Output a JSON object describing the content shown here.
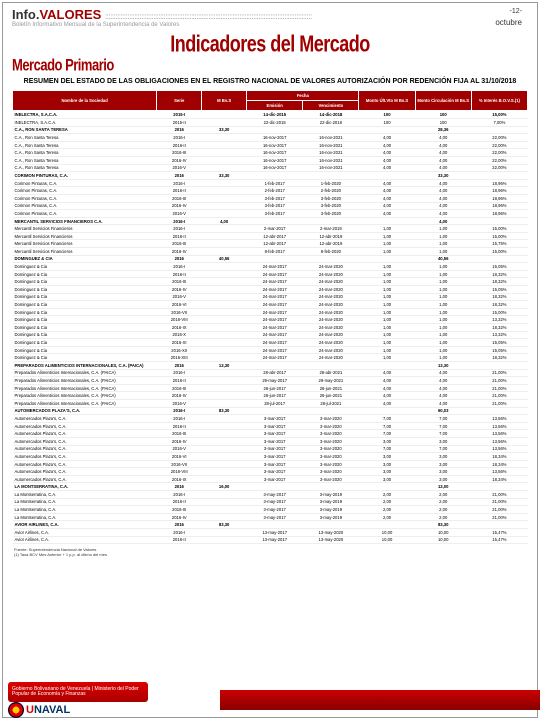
{
  "header": {
    "brand_info": "Info.",
    "brand_valores": "VALORES",
    "subtitle": "Boletín Informativo Mensual de la Superintendencia de Valores",
    "page_num": "-12-",
    "month": "octubre"
  },
  "titles": {
    "main": "Indicadores del Mercado",
    "sub": "Mercado Primario",
    "resumen": "RESUMEN DEL ESTADO DE LAS OBLIGACIONES EN EL REGISTRO NACIONAL DE VALORES AUTORIZACIÓN POR REDENCIÓN FIJA AL 31/10/2018"
  },
  "columns": {
    "nombre": "Nombre de la Sociedad",
    "serie": "Serie",
    "mbs": "M Bs.S",
    "fecha": "Fecha",
    "femi": "Emisión",
    "fvenc": "Vencimiento",
    "monto_cult": "Monto Últ.Vto M Bs.S",
    "monto_circ": "Monto Circulación M Bs.S",
    "interes": "% Interés B.O.V.S.(1)"
  },
  "rows": [
    {
      "g": 1,
      "n": "INELECTRA, S.A.C.A.",
      "s": "2015-I",
      "m": "",
      "fe": "14-dic-2015",
      "fv": "14-dic-2018",
      "c": "100",
      "ci": "100",
      "i": "15,00%"
    },
    {
      "g": 0,
      "n": "INELECTRA, S.A.C.A.",
      "s": "2015-II",
      "m": "",
      "fe": "22-dic-2015",
      "fv": "22-dic-2018",
      "c": "100",
      "ci": "100",
      "i": "7,00%"
    },
    {
      "g": 1,
      "n": "C.A., RON SANTA TERESA",
      "s": "2016",
      "m": "33,30",
      "fe": "",
      "fv": "",
      "c": "",
      "ci": "28,36",
      "i": ""
    },
    {
      "g": 0,
      "n": "C.A., Ron Santa Teresa",
      "s": "2016-I",
      "m": "",
      "fe": "16-nov-2017",
      "fv": "16-nov-2021",
      "c": "4,00",
      "ci": "4,00",
      "i": "22,00%"
    },
    {
      "g": 0,
      "n": "C.A., Ron Santa Teresa",
      "s": "2016-II",
      "m": "",
      "fe": "16-nov-2017",
      "fv": "16-nov-2021",
      "c": "4,00",
      "ci": "4,00",
      "i": "22,00%"
    },
    {
      "g": 0,
      "n": "C.A., Ron Santa Teresa",
      "s": "2016-III",
      "m": "",
      "fe": "16-nov-2017",
      "fv": "16-nov-2021",
      "c": "4,00",
      "ci": "4,00",
      "i": "22,00%"
    },
    {
      "g": 0,
      "n": "C.A., Ron Santa Teresa",
      "s": "2016-IV",
      "m": "",
      "fe": "16-nov-2017",
      "fv": "16-nov-2021",
      "c": "4,00",
      "ci": "4,00",
      "i": "22,00%"
    },
    {
      "g": 0,
      "n": "C.A., Ron Santa Teresa",
      "s": "2016-V",
      "m": "",
      "fe": "16-nov-2017",
      "fv": "16-nov-2021",
      "c": "4,00",
      "ci": "4,00",
      "i": "22,00%"
    },
    {
      "g": 1,
      "n": "CORIMON PINTURAS, C.A.",
      "s": "2016",
      "m": "33,30",
      "fe": "",
      "fv": "",
      "c": "",
      "ci": "33,30",
      "i": ""
    },
    {
      "g": 0,
      "n": "Corimon Pinturas, C.A.",
      "s": "2016-I",
      "m": "",
      "fe": "1-feb-2017",
      "fv": "1-feb-2020",
      "c": "4,00",
      "ci": "4,00",
      "i": "18,96%"
    },
    {
      "g": 0,
      "n": "Corimon Pinturas, C.A.",
      "s": "2016-II",
      "m": "",
      "fe": "2-feb-2017",
      "fv": "2-feb-2020",
      "c": "4,00",
      "ci": "4,00",
      "i": "18,96%"
    },
    {
      "g": 0,
      "n": "Corimon Pinturas, C.A.",
      "s": "2016-III",
      "m": "",
      "fe": "3-feb-2017",
      "fv": "3-feb-2020",
      "c": "4,00",
      "ci": "4,00",
      "i": "18,96%"
    },
    {
      "g": 0,
      "n": "Corimon Pinturas, C.A.",
      "s": "2016-IV",
      "m": "",
      "fe": "3-feb-2017",
      "fv": "3-feb-2020",
      "c": "4,00",
      "ci": "4,00",
      "i": "18,96%"
    },
    {
      "g": 0,
      "n": "Corimon Pinturas, C.A.",
      "s": "2016-V",
      "m": "",
      "fe": "3-feb-2017",
      "fv": "3-feb-2020",
      "c": "4,00",
      "ci": "4,00",
      "i": "18,96%"
    },
    {
      "g": 1,
      "n": "MERCANTIL SERVICIOS FINANCIEROS C.A.",
      "s": "2016-I",
      "m": "4,00",
      "fe": "",
      "fv": "",
      "c": "",
      "ci": "4,00",
      "i": ""
    },
    {
      "g": 0,
      "n": "Mercantil Servicios Financieros",
      "s": "2016-I",
      "m": "",
      "fe": "2-mar-2017",
      "fv": "2-mar-2019",
      "c": "1,00",
      "ci": "1,00",
      "i": "15,00%"
    },
    {
      "g": 0,
      "n": "Mercantil Servicios Financieros",
      "s": "2016-II",
      "m": "",
      "fe": "12-abr-2017",
      "fv": "12-abr-2019",
      "c": "1,00",
      "ci": "1,00",
      "i": "15,00%"
    },
    {
      "g": 0,
      "n": "Mercantil Servicios Financieros",
      "s": "2016-III",
      "m": "",
      "fe": "12-abr-2017",
      "fv": "12-abr-2019",
      "c": "1,00",
      "ci": "1,00",
      "i": "15,75%"
    },
    {
      "g": 0,
      "n": "Mercantil Servicios Financieros",
      "s": "2016-IV",
      "m": "",
      "fe": "8-feb-2017",
      "fv": "8-feb-2020",
      "c": "1,00",
      "ci": "1,00",
      "i": "15,00%"
    },
    {
      "g": 1,
      "n": "DOMINGUEZ & CIA",
      "s": "2016",
      "m": "40,56",
      "fe": "",
      "fv": "",
      "c": "",
      "ci": "40,56",
      "i": ""
    },
    {
      "g": 0,
      "n": "Dominguez & Cia",
      "s": "2016-I",
      "m": "",
      "fe": "24-mar-2017",
      "fv": "24-mar-2020",
      "c": "1,00",
      "ci": "1,00",
      "i": "15,05%"
    },
    {
      "g": 0,
      "n": "Dominguez & Cia",
      "s": "2016-II",
      "m": "",
      "fe": "24-mar-2017",
      "fv": "24-mar-2020",
      "c": "1,00",
      "ci": "1,00",
      "i": "18,32%"
    },
    {
      "g": 0,
      "n": "Dominguez & Cia",
      "s": "2016-III",
      "m": "",
      "fe": "24-mar-2017",
      "fv": "24-mar-2020",
      "c": "1,00",
      "ci": "1,00",
      "i": "18,32%"
    },
    {
      "g": 0,
      "n": "Dominguez & Cia",
      "s": "2016-IV",
      "m": "",
      "fe": "24-mar-2017",
      "fv": "24-mar-2020",
      "c": "1,00",
      "ci": "1,00",
      "i": "15,05%"
    },
    {
      "g": 0,
      "n": "Dominguez & Cia",
      "s": "2016-V",
      "m": "",
      "fe": "24-mar-2017",
      "fv": "24-mar-2020",
      "c": "1,00",
      "ci": "1,00",
      "i": "18,32%"
    },
    {
      "g": 0,
      "n": "Dominguez & Cia",
      "s": "2016-VI",
      "m": "",
      "fe": "24-mar-2017",
      "fv": "24-mar-2020",
      "c": "1,00",
      "ci": "1,00",
      "i": "18,32%"
    },
    {
      "g": 0,
      "n": "Dominguez & Cia",
      "s": "2016-VII",
      "m": "",
      "fe": "24-mar-2017",
      "fv": "24-mar-2020",
      "c": "1,00",
      "ci": "1,00",
      "i": "15,00%"
    },
    {
      "g": 0,
      "n": "Dominguez & Cia",
      "s": "2016-VIII",
      "m": "",
      "fe": "24-mar-2017",
      "fv": "24-mar-2020",
      "c": "1,00",
      "ci": "1,00",
      "i": "13,32%"
    },
    {
      "g": 0,
      "n": "Dominguez & Cia",
      "s": "2016-IX",
      "m": "",
      "fe": "24-mar-2017",
      "fv": "24-mar-2020",
      "c": "1,00",
      "ci": "1,00",
      "i": "18,32%"
    },
    {
      "g": 0,
      "n": "Dominguez & Cia",
      "s": "2016-X",
      "m": "",
      "fe": "24-mar-2017",
      "fv": "24-mar-2020",
      "c": "1,00",
      "ci": "1,00",
      "i": "13,32%"
    },
    {
      "g": 0,
      "n": "Dominguez & Cia",
      "s": "2016-XI",
      "m": "",
      "fe": "24-mar-2017",
      "fv": "24-mar-2020",
      "c": "1,00",
      "ci": "1,00",
      "i": "15,05%"
    },
    {
      "g": 0,
      "n": "Dominguez & Cia",
      "s": "2016-XII",
      "m": "",
      "fe": "24-mar-2017",
      "fv": "24-mar-2020",
      "c": "1,00",
      "ci": "1,00",
      "i": "15,05%"
    },
    {
      "g": 0,
      "n": "Dominguez & Cia",
      "s": "2016-XIII",
      "m": "",
      "fe": "24-mar-2017",
      "fv": "24-mar-2020",
      "c": "1,00",
      "ci": "1,00",
      "i": "18,32%"
    },
    {
      "g": 1,
      "n": "PREPARADOS ALIMENTICIOS INTERNACIONALES, C.A. (PAICA)",
      "s": "2016",
      "m": "13,30",
      "fe": "",
      "fv": "",
      "c": "",
      "ci": "13,30",
      "i": ""
    },
    {
      "g": 0,
      "n": "Preparados Alimenticios Internacionales, C.A. (PAICA)",
      "s": "2016-I",
      "m": "",
      "fe": "28-abr-2017",
      "fv": "28-abr-2021",
      "c": "4,00",
      "ci": "4,00",
      "i": "21,00%"
    },
    {
      "g": 0,
      "n": "Preparados Alimenticios Internacionales, C.A. (PAICA)",
      "s": "2016-II",
      "m": "",
      "fe": "29-may-2017",
      "fv": "29-may-2021",
      "c": "4,00",
      "ci": "4,00",
      "i": "21,00%"
    },
    {
      "g": 0,
      "n": "Preparados Alimenticios Internacionales, C.A. (PAICA)",
      "s": "2016-III",
      "m": "",
      "fe": "26-jun-2017",
      "fv": "26-jun-2021",
      "c": "4,00",
      "ci": "4,00",
      "i": "21,00%"
    },
    {
      "g": 0,
      "n": "Preparados Alimenticios Internacionales, C.A. (PAICA)",
      "s": "2016-IV",
      "m": "",
      "fe": "26-jun-2017",
      "fv": "26-jun-2021",
      "c": "4,00",
      "ci": "4,00",
      "i": "21,00%"
    },
    {
      "g": 0,
      "n": "Preparados Alimenticios Internacionales, C.A. (PAICA)",
      "s": "2016-V",
      "m": "",
      "fe": "28-jul-2017",
      "fv": "28-jul-2021",
      "c": "4,00",
      "ci": "4,00",
      "i": "21,00%"
    },
    {
      "g": 1,
      "n": "AUTOMERCADOS PLAZA'S, C.A.",
      "s": "2016-I",
      "m": "83,30",
      "fe": "",
      "fv": "",
      "c": "",
      "ci": "60,03",
      "i": ""
    },
    {
      "g": 0,
      "n": "Automercados Plaza's, C.A.",
      "s": "2016-I",
      "m": "",
      "fe": "3-mar-2017",
      "fv": "3-mar-2020",
      "c": "7,00",
      "ci": "7,00",
      "i": "13,56%"
    },
    {
      "g": 0,
      "n": "Automercados Plaza's, C.A.",
      "s": "2016-II",
      "m": "",
      "fe": "3-mar-2017",
      "fv": "3-mar-2020",
      "c": "7,00",
      "ci": "7,00",
      "i": "13,56%"
    },
    {
      "g": 0,
      "n": "Automercados Plaza's, C.A.",
      "s": "2016-III",
      "m": "",
      "fe": "3-mar-2017",
      "fv": "3-mar-2020",
      "c": "7,00",
      "ci": "7,00",
      "i": "13,56%"
    },
    {
      "g": 0,
      "n": "Automercados Plaza's, C.A.",
      "s": "2016-IV",
      "m": "",
      "fe": "3-mar-2017",
      "fv": "3-mar-2020",
      "c": "3,00",
      "ci": "3,00",
      "i": "13,56%"
    },
    {
      "g": 0,
      "n": "Automercados Plaza's, C.A.",
      "s": "2016-V",
      "m": "",
      "fe": "3-mar-2017",
      "fv": "3-mar-2020",
      "c": "7,00",
      "ci": "7,00",
      "i": "13,56%"
    },
    {
      "g": 0,
      "n": "Automercados Plaza's, C.A.",
      "s": "2016-VI",
      "m": "",
      "fe": "3-mar-2017",
      "fv": "3-mar-2020",
      "c": "3,00",
      "ci": "3,00",
      "i": "18,34%"
    },
    {
      "g": 0,
      "n": "Automercados Plaza's, C.A.",
      "s": "2016-VII",
      "m": "",
      "fe": "3-mar-2017",
      "fv": "3-mar-2020",
      "c": "3,00",
      "ci": "3,00",
      "i": "18,34%"
    },
    {
      "g": 0,
      "n": "Automercados Plaza's, C.A.",
      "s": "2016-VIII",
      "m": "",
      "fe": "3-mar-2017",
      "fv": "3-mar-2020",
      "c": "3,00",
      "ci": "3,00",
      "i": "13,56%"
    },
    {
      "g": 0,
      "n": "Automercados Plaza's, C.A.",
      "s": "2016-IX",
      "m": "",
      "fe": "3-mar-2017",
      "fv": "3-mar-2020",
      "c": "3,00",
      "ci": "3,00",
      "i": "18,34%"
    },
    {
      "g": 1,
      "n": "LA MONTSERRATINA, C.A.",
      "s": "2016",
      "m": "16,00",
      "fe": "",
      "fv": "",
      "c": "",
      "ci": "13,00",
      "i": ""
    },
    {
      "g": 0,
      "n": "La Montserratina, C.A.",
      "s": "2016-I",
      "m": "",
      "fe": "3-may-2017",
      "fv": "3-may-2019",
      "c": "2,00",
      "ci": "2,00",
      "i": "21,00%"
    },
    {
      "g": 0,
      "n": "La Montserratina, C.A.",
      "s": "2016-II",
      "m": "",
      "fe": "3-may-2017",
      "fv": "3-may-2019",
      "c": "2,00",
      "ci": "2,00",
      "i": "21,00%"
    },
    {
      "g": 0,
      "n": "La Montserratina, C.A.",
      "s": "2016-III",
      "m": "",
      "fe": "3-may-2017",
      "fv": "3-may-2019",
      "c": "2,00",
      "ci": "2,00",
      "i": "21,00%"
    },
    {
      "g": 0,
      "n": "La Montserratina, C.A.",
      "s": "2016-IV",
      "m": "",
      "fe": "3-may-2017",
      "fv": "3-may-2019",
      "c": "2,00",
      "ci": "2,00",
      "i": "21,00%"
    },
    {
      "g": 1,
      "n": "AVIOR AIRLINES, C.A.",
      "s": "2016",
      "m": "83,30",
      "fe": "",
      "fv": "",
      "c": "",
      "ci": "83,30",
      "i": ""
    },
    {
      "g": 0,
      "n": "Avior Airlines, C.A.",
      "s": "2016-I",
      "m": "",
      "fe": "13-may-2017",
      "fv": "13-may-2020",
      "c": "10,00",
      "ci": "10,00",
      "i": "15,47%"
    },
    {
      "g": 0,
      "n": "Avior Airlines, C.A.",
      "s": "2016-II",
      "m": "",
      "fe": "13-may-2017",
      "fv": "13-may-2020",
      "c": "10,00",
      "ci": "10,00",
      "i": "15,47%"
    }
  ],
  "footer": {
    "note1": "Fuente: Superintendencia Nacional de Valores",
    "note2": "(1) Tasa BCV Mes Anterior + 1 p.p. al último del mes",
    "gob": "Gobierno Bolivariano de Venezuela | Ministerio del Poder Popular de Economía y Finanzas",
    "sun_u": "U",
    "sun_rest": "NAVAL"
  },
  "colors": {
    "brand_red": "#a00000",
    "header_bg": "#a00000",
    "bar_red": "#c00000"
  }
}
